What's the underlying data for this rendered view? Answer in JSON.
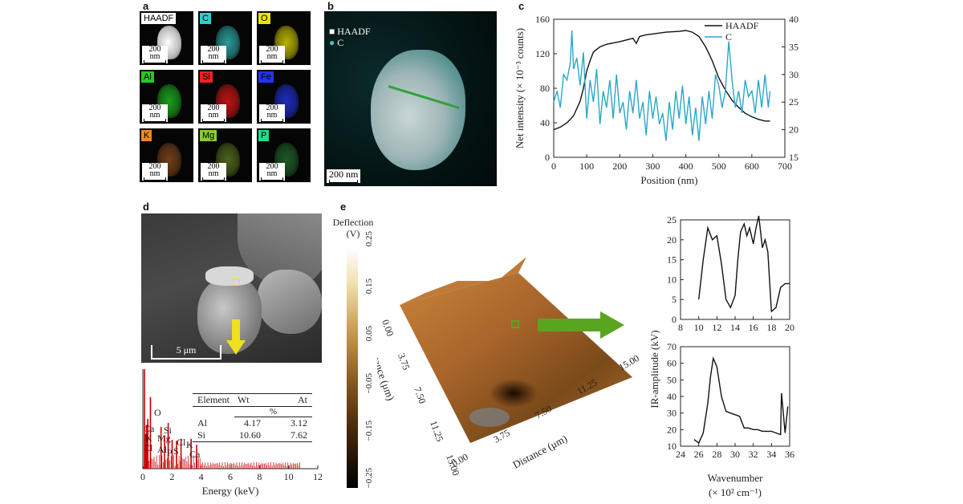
{
  "panels": {
    "a": "a",
    "b": "b",
    "c": "c",
    "d": "d",
    "e": "e"
  },
  "panel_a": {
    "maps": [
      {
        "label": "HAADF",
        "label_bg": "#ffffff",
        "label_fg": "#000000",
        "color": "#e8e8e8"
      },
      {
        "label": "C",
        "label_bg": "#33cccc",
        "label_fg": "#000000",
        "color": "#33b3b3"
      },
      {
        "label": "O",
        "label_bg": "#e8e400",
        "label_fg": "#000000",
        "color": "#d8d000"
      },
      {
        "label": "Al",
        "label_bg": "#22cc22",
        "label_fg": "#000000",
        "color": "#20b820"
      },
      {
        "label": "Si",
        "label_bg": "#ee2222",
        "label_fg": "#000000",
        "color": "#dd1818"
      },
      {
        "label": "Fe",
        "label_bg": "#2233ee",
        "label_fg": "#000000",
        "color": "#2233dd"
      },
      {
        "label": "K",
        "label_bg": "#ee8822",
        "label_fg": "#000000",
        "color": "#c8702a"
      },
      {
        "label": "Mg",
        "label_bg": "#88cc33",
        "label_fg": "#000000",
        "color": "#88b030"
      },
      {
        "label": "P",
        "label_bg": "#22dd88",
        "label_fg": "#000000",
        "color": "#30a040"
      }
    ],
    "scale_value": "200",
    "scale_unit": "nm"
  },
  "panel_b": {
    "legend": [
      "HAADF",
      "C"
    ],
    "scale_bar": "200 nm"
  },
  "chart_data": [
    {
      "panel": "c",
      "type": "line",
      "xlabel": "Position (nm)",
      "ylabel_left": "Net intensity (× 10⁻³ counts)",
      "ylabel_right": "Intensity (× 10³ counts)",
      "xlim": [
        0,
        700
      ],
      "ylim_left": [
        0,
        160
      ],
      "ylim_right": [
        15,
        40
      ],
      "x_ticks": [
        0,
        100,
        200,
        300,
        400,
        500,
        600,
        700
      ],
      "y_left_ticks": [
        0,
        40,
        80,
        120,
        160
      ],
      "y_right_ticks": [
        15,
        20,
        25,
        30,
        35,
        40
      ],
      "legend_position": "top-right",
      "series": [
        {
          "name": "HAADF",
          "axis": "left",
          "color": "#111111",
          "x": [
            0,
            20,
            40,
            60,
            80,
            90,
            100,
            110,
            120,
            140,
            160,
            200,
            240,
            250,
            260,
            280,
            300,
            340,
            380,
            400,
            420,
            440,
            460,
            480,
            500,
            520,
            540,
            560,
            580,
            600,
            620,
            640,
            655
          ],
          "y": [
            32,
            35,
            40,
            48,
            65,
            80,
            100,
            112,
            122,
            128,
            131,
            134,
            138,
            132,
            140,
            142,
            143,
            145,
            146,
            147,
            145,
            140,
            128,
            112,
            92,
            78,
            66,
            58,
            51,
            47,
            44,
            42,
            42
          ]
        },
        {
          "name": "C",
          "axis": "right",
          "color": "#2aa8c8",
          "x": [
            0,
            10,
            20,
            30,
            40,
            50,
            55,
            60,
            70,
            80,
            90,
            100,
            110,
            120,
            130,
            140,
            150,
            160,
            170,
            180,
            190,
            200,
            210,
            220,
            230,
            240,
            250,
            260,
            270,
            280,
            290,
            300,
            310,
            320,
            330,
            340,
            350,
            360,
            370,
            380,
            390,
            400,
            410,
            420,
            430,
            440,
            450,
            460,
            470,
            480,
            490,
            500,
            510,
            520,
            530,
            540,
            550,
            560,
            570,
            580,
            590,
            600,
            610,
            620,
            630,
            640,
            650,
            655
          ],
          "y": [
            25,
            27,
            24,
            30,
            29,
            32,
            38,
            31,
            33,
            28,
            34,
            22,
            29,
            25,
            31,
            21,
            27,
            24,
            29,
            22,
            30,
            23,
            25,
            20,
            27,
            23,
            29,
            22,
            25,
            19,
            27,
            22,
            26,
            21,
            23,
            18,
            25,
            20,
            27,
            22,
            28,
            21,
            26,
            19,
            24,
            18,
            26,
            21,
            27,
            22,
            30,
            28,
            24,
            27,
            36,
            29,
            24,
            27,
            23,
            29,
            26,
            27,
            23,
            29,
            24,
            30,
            24,
            27
          ]
        }
      ]
    },
    {
      "panel": "d-spectrum",
      "type": "bar",
      "xlabel": "Energy (keV)",
      "xlim": [
        0,
        12
      ],
      "x_ticks": [
        0,
        2,
        4,
        6,
        8,
        10,
        12
      ],
      "peaks": [
        {
          "label": "O",
          "x": 0.52,
          "h": 0.72
        },
        {
          "label": "Ca",
          "x": 0.34,
          "h": 0.5
        },
        {
          "label": "K",
          "x": 0.26,
          "h": 0.44
        },
        {
          "label": "Mg",
          "x": 1.25,
          "h": 0.42
        },
        {
          "label": "Si",
          "x": 1.74,
          "h": 0.46
        },
        {
          "label": "Cl",
          "x": 0.18,
          "h": 0.35
        },
        {
          "label": "Al",
          "x": 1.49,
          "h": 0.33
        },
        {
          "label": "P",
          "x": 2.01,
          "h": 0.29
        },
        {
          "label": "S",
          "x": 2.31,
          "h": 0.28
        },
        {
          "label": "Cl",
          "x": 2.62,
          "h": 0.3
        },
        {
          "label": "K",
          "x": 3.31,
          "h": 0.3
        },
        {
          "label": "Ca",
          "x": 3.69,
          "h": 0.24
        }
      ],
      "table": {
        "headers": [
          "Element",
          "Wt",
          "At"
        ],
        "unit": "%",
        "rows": [
          [
            "Al",
            "4.17",
            "3.12"
          ],
          [
            "Si",
            "10.60",
            "7.62"
          ]
        ]
      }
    },
    {
      "panel": "e-top",
      "type": "line",
      "xlim": [
        8,
        20
      ],
      "ylim": [
        0,
        25
      ],
      "x_ticks": [
        8,
        10,
        12,
        14,
        16,
        18,
        20
      ],
      "y_ticks": [
        0,
        5,
        10,
        15,
        20,
        25
      ],
      "series": [
        {
          "x": [
            10,
            10.5,
            11,
            11.5,
            12,
            12.5,
            13,
            13.5,
            14,
            14.3,
            14.6,
            15,
            15.3,
            15.6,
            16,
            16.3,
            16.6,
            17,
            17.3,
            17.6,
            18,
            18.5,
            19,
            19.5,
            20
          ],
          "y": [
            5,
            15,
            23,
            20,
            21,
            14,
            5,
            3,
            6,
            15,
            22,
            24,
            21,
            23,
            19,
            23,
            26,
            18,
            20,
            17,
            2,
            3,
            8,
            9,
            9
          ]
        }
      ]
    },
    {
      "panel": "e-bottom",
      "type": "line",
      "xlabel": "Wavenumber",
      "xlabel_unit": "(× 10² cm⁻¹)",
      "ylabel": "IR-amplitude (kV)",
      "xlim": [
        24,
        36
      ],
      "ylim": [
        10,
        70
      ],
      "x_ticks": [
        24,
        26,
        28,
        30,
        32,
        34,
        36
      ],
      "y_ticks": [
        10,
        20,
        30,
        40,
        50,
        60,
        70
      ],
      "series": [
        {
          "x": [
            25.5,
            26,
            26.5,
            27,
            27.3,
            27.6,
            28,
            28.5,
            29,
            29.5,
            30,
            30.5,
            31,
            31.5,
            32,
            32.5,
            33,
            33.5,
            34,
            34.5,
            35,
            35.1,
            35.3,
            35.5,
            35.8
          ],
          "y": [
            14,
            12,
            18,
            36,
            52,
            63,
            58,
            40,
            31,
            30,
            29,
            28,
            21,
            21,
            20,
            20,
            19,
            19,
            19,
            18,
            17,
            42,
            30,
            18,
            34
          ]
        }
      ]
    }
  ],
  "panel_e": {
    "colorbar_title": "Deflection",
    "colorbar_unit": "(V)",
    "colorbar_ticks": [
      "0.25",
      "0.15",
      "0.05",
      "−0.05",
      "−0.15",
      "−0.25"
    ],
    "axis_label": "Distance (μm)",
    "axis_ticks_left": [
      "0.00",
      "3.75",
      "7.50",
      "11.25",
      "15.00"
    ],
    "axis_ticks_bottom": [
      "0.00",
      "3.75",
      "7.50",
      "11.25",
      "15.00"
    ],
    "arrow_color": "#5aa520"
  },
  "panel_d": {
    "scale_bar": "5 μm",
    "arrow_color": "#f0e020"
  }
}
